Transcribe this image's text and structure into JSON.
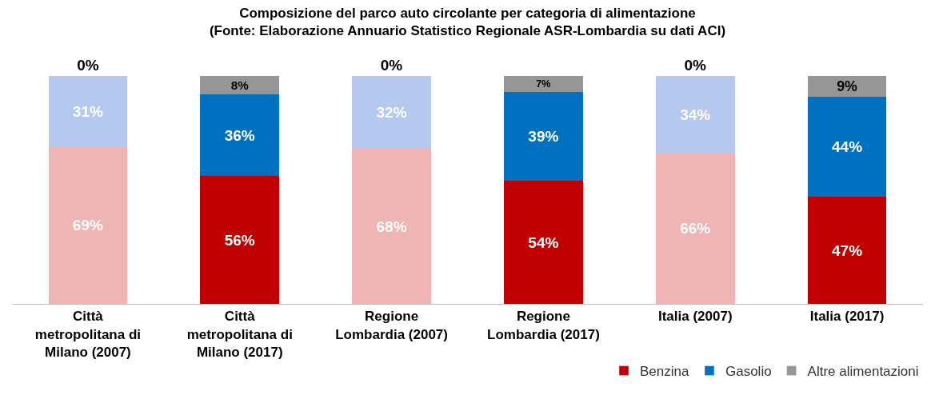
{
  "chart_data": {
    "type": "bar",
    "stacked": true,
    "legend": "bottom right",
    "tick_labels": "x",
    "title": "Composizione del parco auto circolante per categoria di alimentazione\n(Fonte: Elaborazione Annuario Statistico Regionale ASR-Lombardia su dati ACI)",
    "categories": [
      "Città metropolitana di Milano (2007)",
      "Città metropolitana di Milano (2017)",
      "Regione Lombardia (2007)",
      "Regione Lombardia (2017)",
      "Italia (2007)",
      "Italia (2017)"
    ],
    "series": [
      {
        "name": "Benzina",
        "color": "#c00000",
        "colors": [
          "#f0b4b4",
          "#c00000",
          "#f0b4b4",
          "#c00000",
          "#f0b4b4",
          "#c00000"
        ],
        "values": [
          69,
          56,
          68,
          54,
          66,
          47
        ],
        "value_labels": [
          "69%",
          "56%",
          "68%",
          "54%",
          "66%",
          "47%"
        ]
      },
      {
        "name": "Gasolio",
        "color": "#0070c0",
        "colors": [
          "#b4c8f0",
          "#0070c0",
          "#b4c8f0",
          "#0070c0",
          "#b4c8f0",
          "#0070c0"
        ],
        "values": [
          31,
          36,
          32,
          39,
          34,
          44
        ],
        "value_labels": [
          "31%",
          "36%",
          "32%",
          "39%",
          "34%",
          "44%"
        ]
      },
      {
        "name": "Altre alimentazioni",
        "color": "#969696",
        "colors": [
          "#d9d9d9",
          "#969696",
          "#d9d9d9",
          "#969696",
          "#d9d9d9",
          "#969696"
        ],
        "values": [
          0,
          8,
          0,
          7,
          0,
          9
        ],
        "value_labels": [
          "0%",
          "8%",
          "0%",
          "7%",
          "0%",
          "9%"
        ]
      }
    ]
  }
}
